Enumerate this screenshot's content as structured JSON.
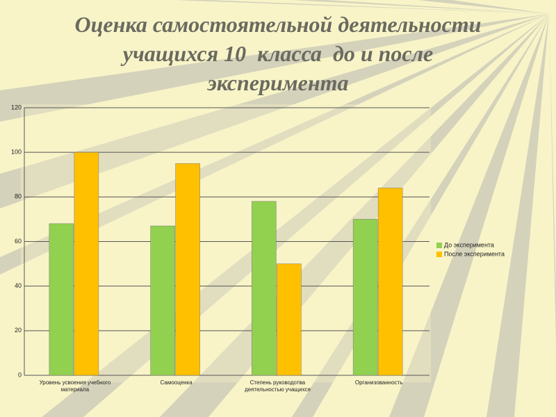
{
  "chart_data": {
    "type": "bar",
    "title": "Оценка самостоятельной деятельности учащихся 10  класса  до и после эксперимента",
    "categories": [
      "Уровень усвоения учебного материала",
      "Самооценка",
      "Степень руководотва деятельностью учащихся",
      "Организованность"
    ],
    "series": [
      {
        "name": "До эксперимента",
        "color": "#92d050",
        "values": [
          68,
          67,
          78,
          70
        ]
      },
      {
        "name": "После эксперимента",
        "color": "#ffc000",
        "values": [
          100,
          95,
          50,
          84
        ]
      }
    ],
    "ylim": [
      0,
      120
    ],
    "yticks": [
      0,
      20,
      40,
      60,
      80,
      100,
      120
    ],
    "grid": true,
    "legend": "right"
  }
}
